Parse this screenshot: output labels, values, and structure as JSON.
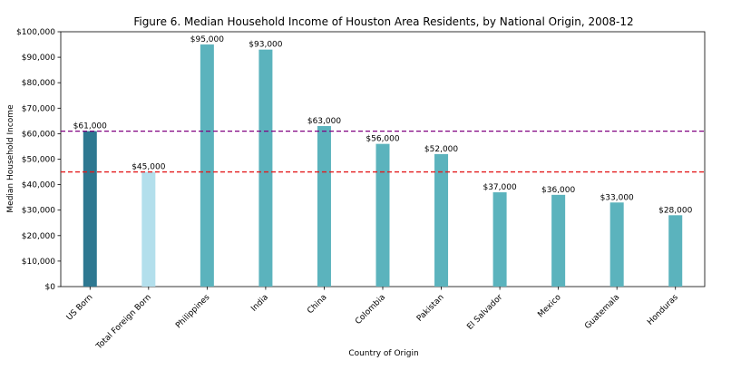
{
  "chart_data": {
    "type": "bar",
    "title": "Figure 6. Median Household Income of Houston Area Residents, by National Origin, 2008-12",
    "xlabel": "Country of Origin",
    "ylabel": "Median Household Income",
    "categories": [
      "US Born",
      "Total Foreign Born",
      "Philippines",
      "India",
      "China",
      "Colombia",
      "Pakistan",
      "El Salvador",
      "Mexico",
      "Guatemala",
      "Honduras"
    ],
    "values": [
      61000,
      45000,
      95000,
      93000,
      63000,
      56000,
      52000,
      37000,
      36000,
      33000,
      28000
    ],
    "data_labels": [
      "$61,000",
      "$45,000",
      "$95,000",
      "$93,000",
      "$63,000",
      "$56,000",
      "$52,000",
      "$37,000",
      "$36,000",
      "$33,000",
      "$28,000"
    ],
    "bar_colors": [
      "#2e7891",
      "#b3dfec",
      "#5bb3bd",
      "#5bb3bd",
      "#5bb3bd",
      "#5bb3bd",
      "#5bb3bd",
      "#5bb3bd",
      "#5bb3bd",
      "#5bb3bd",
      "#5bb3bd"
    ],
    "ylim": [
      0,
      100000
    ],
    "yticks": [
      0,
      10000,
      20000,
      30000,
      40000,
      50000,
      60000,
      70000,
      80000,
      90000,
      100000
    ],
    "ytick_labels": [
      "$0",
      "$10,000",
      "$20,000",
      "$30,000",
      "$40,000",
      "$50,000",
      "$60,000",
      "$70,000",
      "$80,000",
      "$90,000",
      "$100,000"
    ],
    "reference_lines": [
      {
        "value": 61000,
        "color": "#800080",
        "style": "dashed"
      },
      {
        "value": 45000,
        "color": "#e31a1c",
        "style": "dashed"
      }
    ],
    "grid": false,
    "legend": "none"
  }
}
